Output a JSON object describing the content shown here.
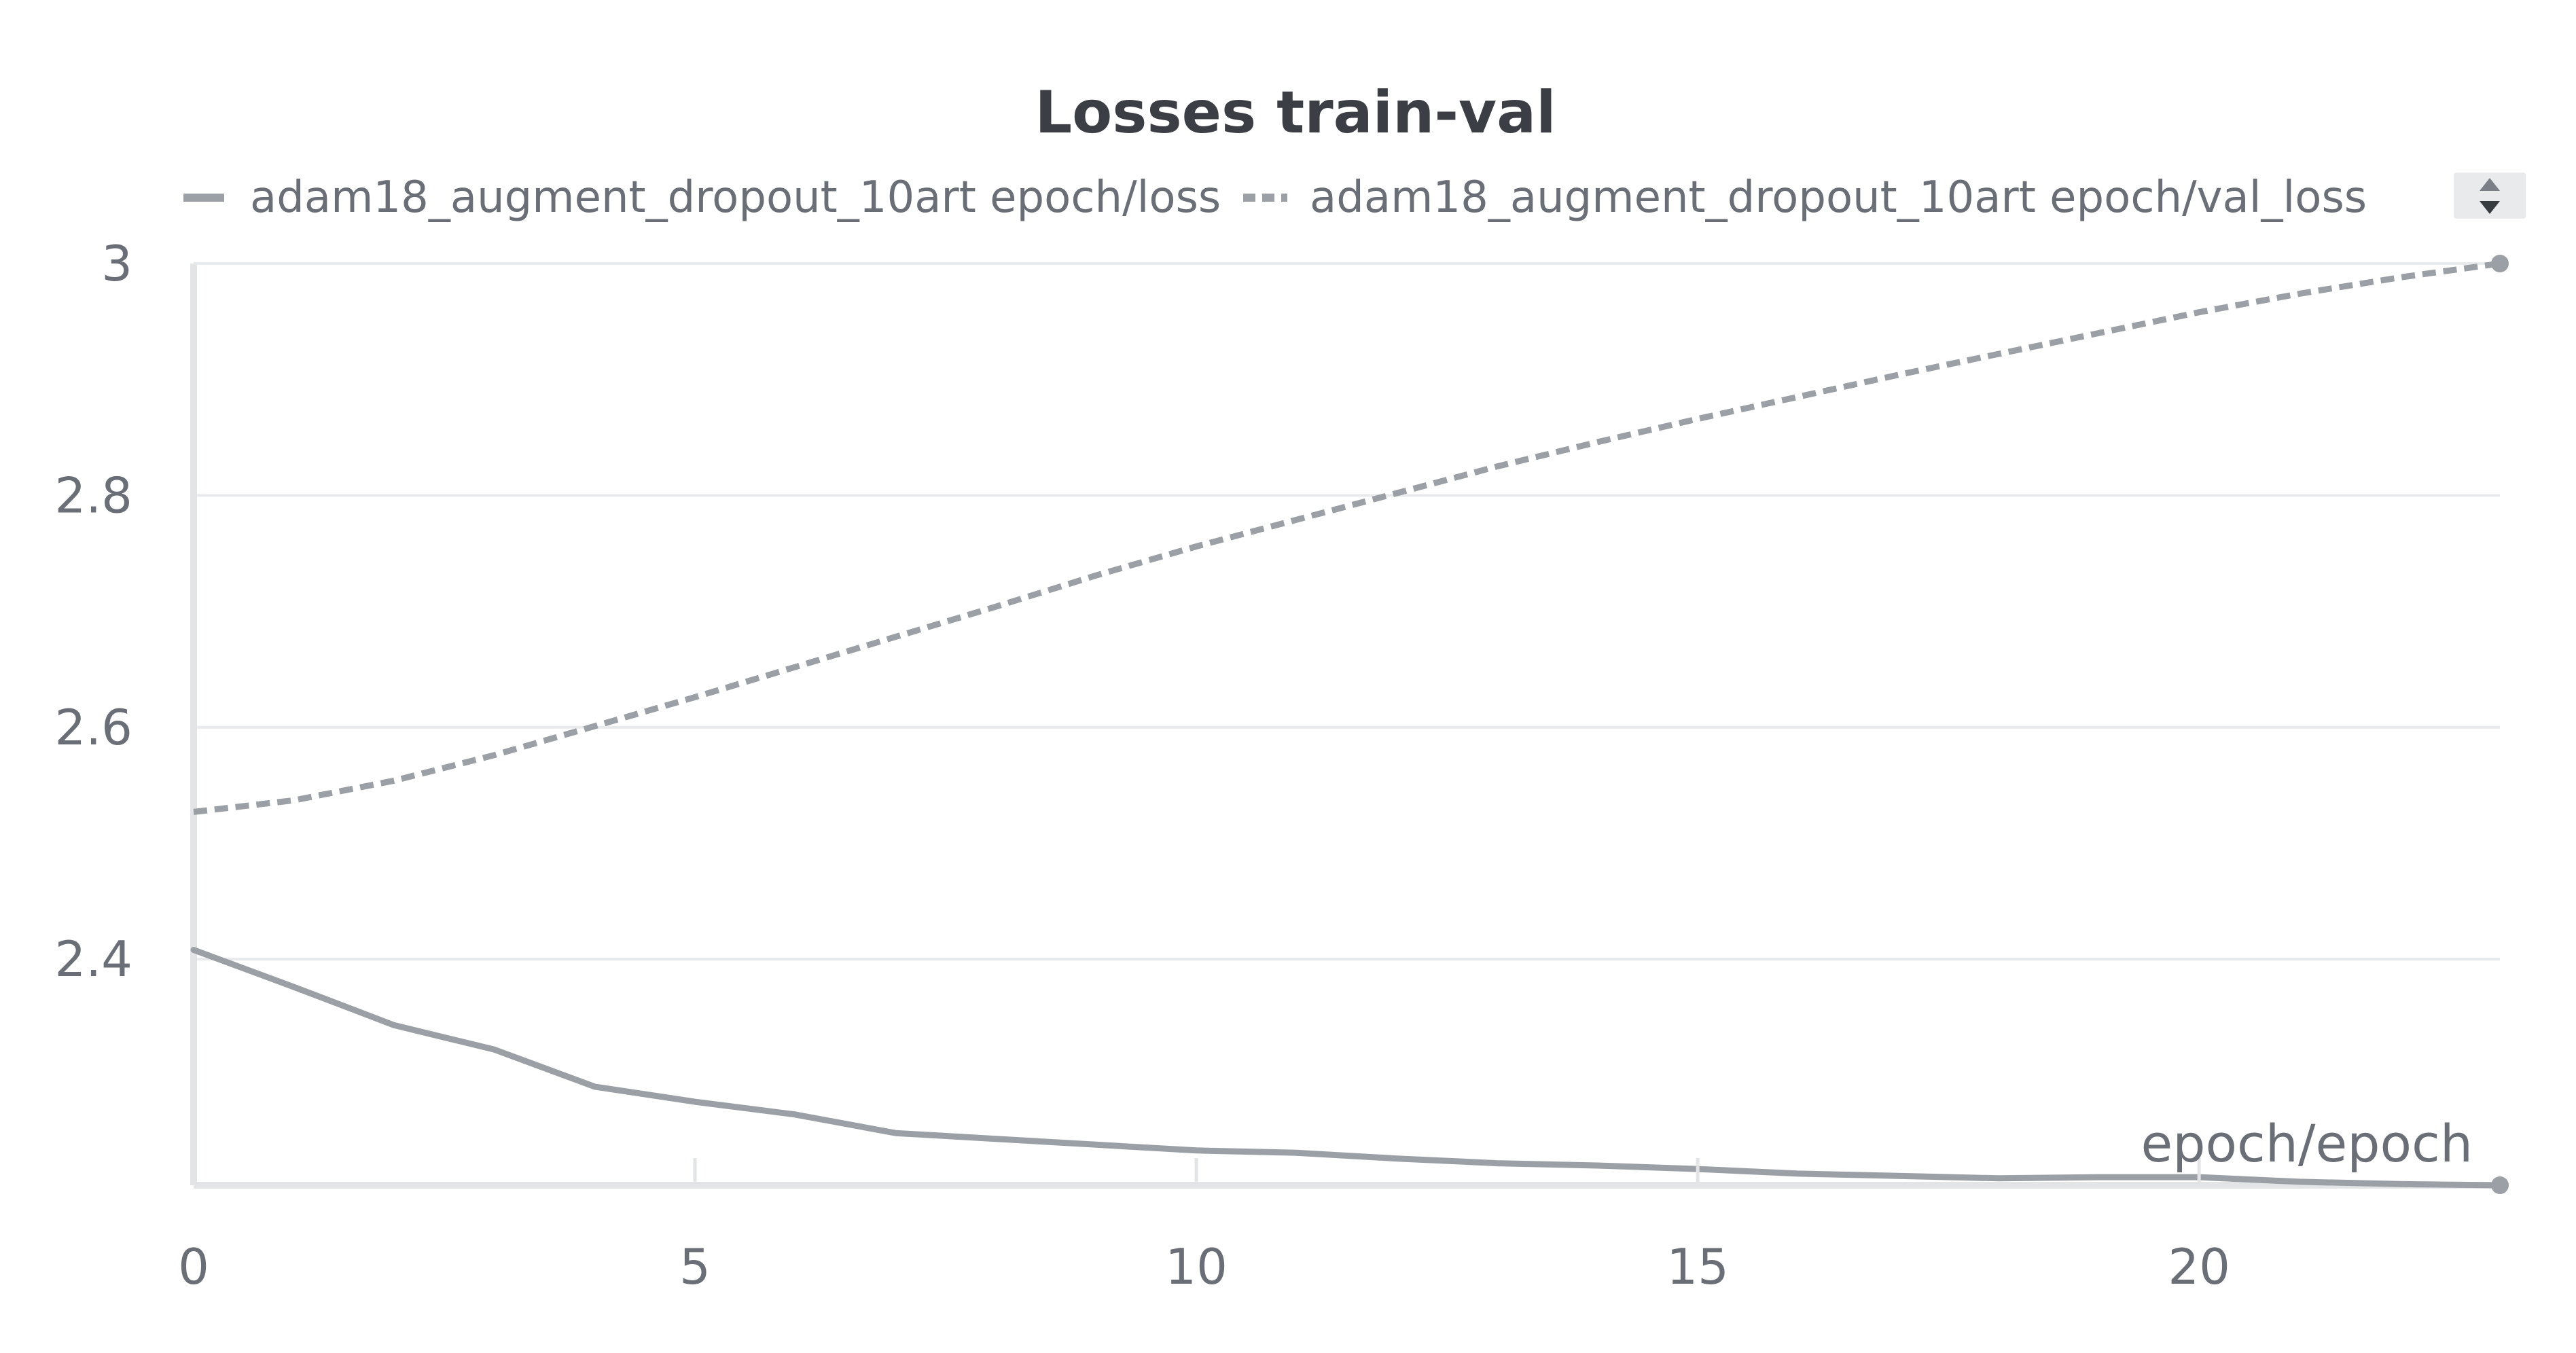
{
  "chart_data": {
    "type": "line",
    "title": "Losses train-val",
    "xlabel": "epoch/epoch",
    "ylabel": "",
    "xlim": [
      0,
      23
    ],
    "ylim": [
      2.205,
      3.0
    ],
    "x_ticks": [
      0,
      5,
      10,
      15,
      20
    ],
    "y_ticks": [
      2.4,
      2.6,
      2.8,
      3
    ],
    "y_tick_labels": [
      "2.4",
      "2.6",
      "2.8",
      "3"
    ],
    "x_tick_labels": [
      "0",
      "5",
      "10",
      "15",
      "20"
    ],
    "grid": true,
    "legend_position": "top",
    "series": [
      {
        "name": "adam18_augment_dropout_10art epoch/loss",
        "style": "solid",
        "color": "#9aa0a6",
        "x": [
          0,
          1,
          2,
          3,
          4,
          5,
          6,
          7,
          8,
          9,
          10,
          11,
          12,
          13,
          14,
          15,
          16,
          17,
          18,
          19,
          20,
          21,
          22,
          23
        ],
        "values": [
          2.408,
          2.376,
          2.343,
          2.322,
          2.29,
          2.277,
          2.266,
          2.25,
          2.245,
          2.24,
          2.235,
          2.233,
          2.228,
          2.224,
          2.222,
          2.219,
          2.215,
          2.213,
          2.211,
          2.212,
          2.212,
          2.208,
          2.206,
          2.205
        ]
      },
      {
        "name": "adam18_augment_dropout_10art epoch/val_loss",
        "style": "dashed",
        "color": "#9aa0a6",
        "x": [
          0,
          1,
          2,
          3,
          4,
          5,
          6,
          7,
          8,
          9,
          10,
          11,
          12,
          13,
          14,
          15,
          16,
          17,
          18,
          19,
          20,
          21,
          22,
          23
        ],
        "values": [
          2.527,
          2.537,
          2.554,
          2.576,
          2.601,
          2.626,
          2.652,
          2.678,
          2.704,
          2.731,
          2.756,
          2.779,
          2.802,
          2.825,
          2.846,
          2.866,
          2.885,
          2.904,
          2.922,
          2.94,
          2.958,
          2.974,
          2.988,
          3.0
        ]
      }
    ]
  }
}
